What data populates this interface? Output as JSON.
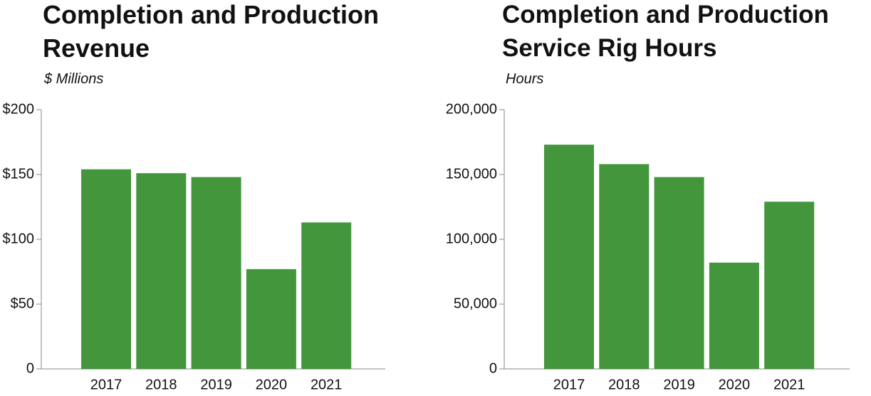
{
  "chart_data": [
    {
      "type": "bar",
      "title": "Completion and Production Revenue",
      "subtitle": "$ Millions",
      "categories": [
        "2017",
        "2018",
        "2019",
        "2020",
        "2021"
      ],
      "values": [
        154,
        151,
        148,
        77,
        113
      ],
      "color": "#43963c",
      "ylim": [
        0,
        200
      ],
      "yticks": [
        0,
        {
          "value": 50,
          "label": "$50"
        },
        {
          "value": 100,
          "label": "$100"
        },
        {
          "value": 150,
          "label": "$150"
        },
        {
          "value": 200,
          "label": "$200"
        }
      ]
    },
    {
      "type": "bar",
      "title": "Completion and Production Service Rig Hours",
      "subtitle": "Hours",
      "categories": [
        "2017",
        "2018",
        "2019",
        "2020",
        "2021"
      ],
      "values": [
        173000,
        158000,
        148000,
        82000,
        129000
      ],
      "color": "#43963c",
      "ylim": [
        0,
        200000
      ],
      "yticks": [
        0,
        {
          "value": 50000,
          "label": "50,000"
        },
        {
          "value": 100000,
          "label": "100,000"
        },
        {
          "value": 150000,
          "label": "150,000"
        },
        {
          "value": 200000,
          "label": "200,000"
        }
      ]
    }
  ]
}
